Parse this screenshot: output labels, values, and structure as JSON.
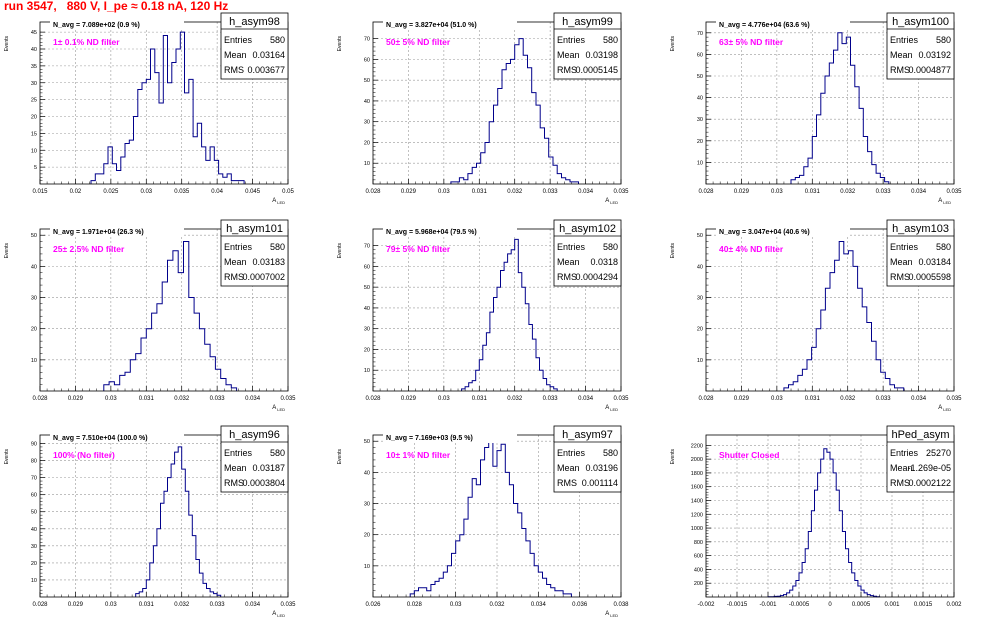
{
  "run_title": "run 3547,   880 V, I_pe ≈ 0.18 nA, 120 Hz",
  "colors": {
    "histogram_line": "#00008b",
    "annotation": "#ff00ff",
    "title": "#ff0000",
    "grid": "#999999"
  },
  "chart_data": [
    {
      "type": "bar",
      "title": "h_asym98",
      "stats": {
        "Entries": "580",
        "Mean": "0.03164",
        "RMS": "0.003677"
      },
      "navg": "N_avg = 7.089e+02 (0.9 %)",
      "annotation": "1± 0.1% ND filter",
      "xlabel": "A_LED",
      "ylabel": "Events",
      "xlim": [
        0.015,
        0.05
      ],
      "ylim": [
        0,
        48
      ],
      "xticks": [
        "0.015",
        "0.02",
        "0.025",
        "0.03",
        "0.035",
        "0.04",
        "0.045",
        "0.05"
      ],
      "yticks": [
        "5",
        "10",
        "15",
        "20",
        "25",
        "30",
        "35",
        "40",
        "45"
      ],
      "bin_edges": [
        0.0222,
        0.0228,
        0.0234,
        0.024,
        0.0246,
        0.0252,
        0.0258,
        0.0264,
        0.027,
        0.0276,
        0.0282,
        0.0288,
        0.0294,
        0.03,
        0.0306,
        0.0312,
        0.0318,
        0.0324,
        0.033,
        0.0336,
        0.0342,
        0.0348,
        0.0354,
        0.036,
        0.0366,
        0.0372,
        0.0378,
        0.0384,
        0.039,
        0.0396,
        0.0402,
        0.0408,
        0.0414,
        0.042,
        0.0426,
        0.0432,
        0.0438
      ],
      "values": [
        1,
        3,
        3,
        6,
        11,
        6,
        4,
        8,
        12,
        13,
        20,
        28,
        30,
        31,
        40,
        33,
        24,
        44,
        30,
        36,
        40,
        45,
        27,
        31,
        14,
        18,
        11,
        7,
        11,
        7,
        3,
        2,
        3,
        1,
        1,
        1
      ]
    },
    {
      "type": "bar",
      "title": "h_asym99",
      "stats": {
        "Entries": "580",
        "Mean": "0.03198",
        "RMS": "0.0005145"
      },
      "navg": "N_avg = 3.827e+04 (51.0 %)",
      "annotation": "50± 5% ND filter",
      "xlabel": "A_LED",
      "ylabel": "Events",
      "xlim": [
        0.028,
        0.035
      ],
      "ylim": [
        0,
        78
      ],
      "xticks": [
        "0.028",
        "0.029",
        "0.03",
        "0.031",
        "0.032",
        "0.033",
        "0.034",
        "0.035"
      ],
      "yticks": [
        "10",
        "20",
        "30",
        "40",
        "50",
        "60",
        "70"
      ],
      "bin_edges": [
        0.0302,
        0.03032,
        0.03044,
        0.03056,
        0.03068,
        0.0308,
        0.03092,
        0.03104,
        0.03116,
        0.03128,
        0.0314,
        0.03152,
        0.03164,
        0.03176,
        0.03188,
        0.032,
        0.03212,
        0.03224,
        0.03236,
        0.03248,
        0.0326,
        0.03272,
        0.03284,
        0.03296,
        0.03308,
        0.0332,
        0.03332,
        0.03344,
        0.03356,
        0.03368,
        0.0338
      ],
      "values": [
        1,
        1,
        3,
        2,
        5,
        8,
        10,
        15,
        20,
        30,
        38,
        46,
        55,
        58,
        60,
        67,
        70,
        62,
        56,
        44,
        38,
        27,
        22,
        13,
        9,
        5,
        3,
        2,
        1,
        1
      ]
    },
    {
      "type": "bar",
      "title": "h_asym100",
      "stats": {
        "Entries": "580",
        "Mean": "0.03192",
        "RMS": "0.0004877"
      },
      "navg": "N_avg = 4.776e+04 (63.6 %)",
      "annotation": "63± 5% ND filter",
      "xlabel": "A_LED",
      "ylabel": "Events",
      "xlim": [
        0.028,
        0.035
      ],
      "ylim": [
        0,
        75
      ],
      "xticks": [
        "0.028",
        "0.029",
        "0.03",
        "0.031",
        "0.032",
        "0.033",
        "0.034",
        "0.035"
      ],
      "yticks": [
        "10",
        "20",
        "30",
        "40",
        "50",
        "60",
        "70"
      ],
      "bin_edges": [
        0.0304,
        0.03052,
        0.03064,
        0.03076,
        0.03088,
        0.031,
        0.03112,
        0.03124,
        0.03136,
        0.03148,
        0.0316,
        0.03172,
        0.03184,
        0.03196,
        0.03208,
        0.0322,
        0.03232,
        0.03244,
        0.03256,
        0.03268,
        0.0328,
        0.03292,
        0.03304,
        0.03316
      ],
      "values": [
        2,
        3,
        4,
        8,
        12,
        22,
        32,
        42,
        50,
        56,
        62,
        70,
        65,
        68,
        55,
        45,
        35,
        22,
        15,
        9,
        5,
        3,
        1
      ]
    },
    {
      "type": "bar",
      "title": "h_asym101",
      "stats": {
        "Entries": "580",
        "Mean": "0.03183",
        "RMS": "0.0007002"
      },
      "navg": "N_avg = 1.971e+04 (26.3 %)",
      "annotation": "25± 2.5% ND filter",
      "xlabel": "A_LED",
      "ylabel": "Events",
      "xlim": [
        0.028,
        0.035
      ],
      "ylim": [
        0,
        52
      ],
      "xticks": [
        "0.028",
        "0.029",
        "0.03",
        "0.031",
        "0.032",
        "0.033",
        "0.034",
        "0.035"
      ],
      "yticks": [
        "10",
        "20",
        "30",
        "40",
        "50"
      ],
      "bin_edges": [
        0.0298,
        0.02995,
        0.0301,
        0.03025,
        0.0304,
        0.03055,
        0.0307,
        0.03085,
        0.031,
        0.03115,
        0.0313,
        0.03145,
        0.0316,
        0.03175,
        0.0319,
        0.03205,
        0.0322,
        0.03235,
        0.0325,
        0.03265,
        0.0328,
        0.03295,
        0.0331,
        0.03325,
        0.0334,
        0.03355
      ],
      "values": [
        2,
        3,
        2,
        5,
        6,
        10,
        12,
        17,
        20,
        25,
        28,
        35,
        42,
        45,
        38,
        48,
        30,
        25,
        20,
        15,
        11,
        7,
        4,
        2,
        1
      ]
    },
    {
      "type": "bar",
      "title": "h_asym102",
      "stats": {
        "Entries": "580",
        "Mean": "0.0318",
        "RMS": "0.0004294"
      },
      "navg": "N_avg = 5.968e+04 (79.5 %)",
      "annotation": "79± 5% ND filter",
      "xlabel": "A_LED",
      "ylabel": "Events",
      "xlim": [
        0.028,
        0.035
      ],
      "ylim": [
        0,
        78
      ],
      "xticks": [
        "0.028",
        "0.029",
        "0.03",
        "0.031",
        "0.032",
        "0.033",
        "0.034",
        "0.035"
      ],
      "yticks": [
        "10",
        "20",
        "30",
        "40",
        "50",
        "60",
        "70"
      ],
      "bin_edges": [
        0.0305,
        0.0306,
        0.0307,
        0.0308,
        0.0309,
        0.031,
        0.0311,
        0.0312,
        0.0313,
        0.0314,
        0.0315,
        0.0316,
        0.0317,
        0.0318,
        0.0319,
        0.032,
        0.0321,
        0.0322,
        0.0323,
        0.0324,
        0.0325,
        0.0326,
        0.0327,
        0.0328,
        0.0329,
        0.033,
        0.0331,
        0.0332
      ],
      "values": [
        1,
        2,
        4,
        5,
        10,
        15,
        22,
        28,
        38,
        45,
        50,
        58,
        62,
        66,
        68,
        73,
        57,
        50,
        42,
        32,
        25,
        16,
        10,
        6,
        3,
        2,
        1
      ]
    },
    {
      "type": "bar",
      "title": "h_asym103",
      "stats": {
        "Entries": "580",
        "Mean": "0.03184",
        "RMS": "0.0005598"
      },
      "navg": "N_avg = 3.047e+04 (40.6 %)",
      "annotation": "40± 4% ND filter",
      "xlabel": "A_LED",
      "ylabel": "Events",
      "xlim": [
        0.028,
        0.035
      ],
      "ylim": [
        0,
        52
      ],
      "xticks": [
        "0.028",
        "0.029",
        "0.03",
        "0.031",
        "0.032",
        "0.033",
        "0.034",
        "0.035"
      ],
      "yticks": [
        "10",
        "20",
        "30",
        "40",
        "50"
      ],
      "bin_edges": [
        0.0302,
        0.03033,
        0.03046,
        0.03059,
        0.03072,
        0.03085,
        0.03098,
        0.03111,
        0.03124,
        0.03137,
        0.0315,
        0.03163,
        0.03176,
        0.03189,
        0.03202,
        0.03215,
        0.03228,
        0.03241,
        0.03254,
        0.03267,
        0.0328,
        0.03293,
        0.03306,
        0.03319,
        0.03332,
        0.03345,
        0.03358
      ],
      "values": [
        1,
        2,
        3,
        5,
        7,
        10,
        14,
        20,
        26,
        33,
        38,
        42,
        48,
        44,
        45,
        40,
        33,
        27,
        22,
        16,
        10,
        6,
        4,
        2,
        1,
        1
      ]
    },
    {
      "type": "bar",
      "title": "h_asym96",
      "stats": {
        "Entries": "580",
        "Mean": "0.03187",
        "RMS": "0.0003804"
      },
      "navg": "N_avg = 7.510e+04 (100.0 %)",
      "annotation": "100% (No filter)",
      "xlabel": "A_LED",
      "ylabel": "Events",
      "xlim": [
        0.028,
        0.035
      ],
      "ylim": [
        0,
        95
      ],
      "xticks": [
        "0.028",
        "0.029",
        "0.03",
        "0.031",
        "0.032",
        "0.033",
        "0.034",
        "0.035"
      ],
      "yticks": [
        "10",
        "20",
        "30",
        "40",
        "50",
        "60",
        "70",
        "80",
        "90"
      ],
      "bin_edges": [
        0.0307,
        0.0308,
        0.0309,
        0.031,
        0.0311,
        0.0312,
        0.0313,
        0.0314,
        0.0315,
        0.0316,
        0.0317,
        0.0318,
        0.0319,
        0.032,
        0.0321,
        0.0322,
        0.0323,
        0.0324,
        0.0325,
        0.0326,
        0.0327,
        0.0328,
        0.0329,
        0.033,
        0.0331
      ],
      "values": [
        2,
        3,
        5,
        10,
        20,
        30,
        40,
        55,
        62,
        70,
        78,
        85,
        88,
        75,
        62,
        48,
        36,
        22,
        14,
        8,
        5,
        3,
        2,
        1
      ]
    },
    {
      "type": "bar",
      "title": "h_asym97",
      "stats": {
        "Entries": "580",
        "Mean": "0.03196",
        "RMS": "0.001114"
      },
      "navg": "N_avg = 7.169e+03 (9.5 %)",
      "annotation": "10± 1% ND filter",
      "xlabel": "A_LED",
      "ylabel": "Events",
      "xlim": [
        0.026,
        0.038
      ],
      "ylim": [
        0,
        52
      ],
      "xticks": [
        "0.026",
        "0.028",
        "0.03",
        "0.032",
        "0.034",
        "0.036",
        "0.038"
      ],
      "yticks": [
        "10",
        "20",
        "30",
        "40",
        "50"
      ],
      "bin_edges": [
        0.0278,
        0.028,
        0.0282,
        0.0284,
        0.0286,
        0.0288,
        0.029,
        0.0292,
        0.0294,
        0.0296,
        0.0298,
        0.03,
        0.0302,
        0.0304,
        0.0306,
        0.0308,
        0.031,
        0.0312,
        0.0314,
        0.0316,
        0.0318,
        0.032,
        0.0322,
        0.0324,
        0.0326,
        0.0328,
        0.033,
        0.0332,
        0.0334,
        0.0336,
        0.0338,
        0.034,
        0.0342,
        0.0344,
        0.0346,
        0.0348,
        0.035,
        0.0352,
        0.0354,
        0.0356
      ],
      "values": [
        1,
        2,
        3,
        3,
        2,
        4,
        5,
        6,
        8,
        10,
        14,
        18,
        20,
        25,
        32,
        38,
        36,
        44,
        48,
        50,
        42,
        47,
        49,
        40,
        36,
        30,
        27,
        22,
        18,
        14,
        10,
        8,
        6,
        4,
        3,
        2,
        2,
        1,
        1
      ]
    },
    {
      "type": "bar",
      "title": "hPed_asym",
      "stats": {
        "Entries": "25270",
        "Mean": "-1.269e-05",
        "RMS": "0.0002122"
      },
      "navg": "",
      "annotation": "Shutter Closed",
      "xlabel": "",
      "ylabel": "Events",
      "xlim": [
        -0.002,
        0.002
      ],
      "ylim": [
        0,
        2350
      ],
      "xticks": [
        "-0.002",
        "-0.0015",
        "-0.001",
        "-0.0005",
        "0",
        "0.0005",
        "0.001",
        "0.0015",
        "0.002"
      ],
      "yticks": [
        "200",
        "400",
        "600",
        "800",
        "1000",
        "1200",
        "1400",
        "1600",
        "1800",
        "2000",
        "2200"
      ],
      "bin_edges": [
        -0.001,
        -0.00095,
        -0.0009,
        -0.00085,
        -0.0008,
        -0.00075,
        -0.0007,
        -0.00065,
        -0.0006,
        -0.00055,
        -0.0005,
        -0.00045,
        -0.0004,
        -0.00035,
        -0.0003,
        -0.00025,
        -0.0002,
        -0.00015,
        -0.0001,
        -5e-05,
        0.0,
        5e-05,
        0.0001,
        0.00015,
        0.0002,
        0.00025,
        0.0003,
        0.00035,
        0.0004,
        0.00045,
        0.0005,
        0.00055,
        0.0006,
        0.00065,
        0.0007,
        0.00075,
        0.0008
      ],
      "values": [
        3,
        5,
        8,
        12,
        20,
        35,
        60,
        100,
        160,
        240,
        350,
        500,
        700,
        950,
        1250,
        1550,
        1800,
        2000,
        2150,
        2100,
        2000,
        1800,
        1550,
        1250,
        950,
        700,
        500,
        350,
        240,
        160,
        100,
        60,
        35,
        20,
        10,
        5
      ]
    }
  ]
}
